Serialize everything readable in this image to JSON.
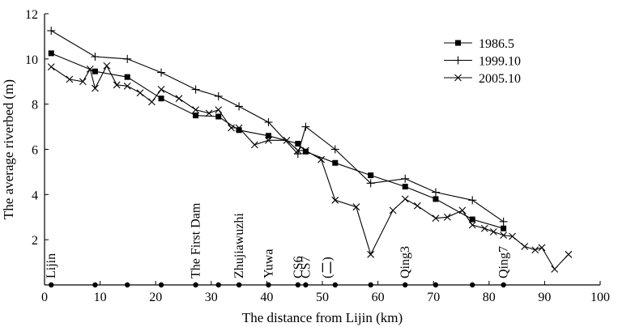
{
  "chart_data": {
    "type": "line",
    "title": "",
    "xlabel": "The distance from Lijin (km)",
    "ylabel": "The average riverbed (m)",
    "xlim": [
      0,
      100
    ],
    "ylim": [
      0,
      12
    ],
    "x_ticks": [
      0,
      10,
      20,
      30,
      40,
      50,
      60,
      70,
      80,
      90,
      100
    ],
    "y_ticks": [
      2,
      4,
      6,
      8,
      10,
      12
    ],
    "grid": false,
    "legend_position": "top-right",
    "series": [
      {
        "name": "1986.5",
        "marker": "square",
        "points": [
          [
            1.2,
            10.25
          ],
          [
            9.1,
            9.45
          ],
          [
            14.9,
            9.2
          ],
          [
            21.0,
            8.25
          ],
          [
            27.2,
            7.5
          ],
          [
            31.3,
            7.45
          ],
          [
            35.0,
            6.85
          ],
          [
            40.3,
            6.6
          ],
          [
            45.6,
            6.25
          ],
          [
            47.0,
            5.9
          ],
          [
            52.3,
            5.4
          ],
          [
            58.7,
            4.85
          ],
          [
            64.9,
            4.35
          ],
          [
            70.4,
            3.8
          ],
          [
            77.0,
            2.9
          ],
          [
            82.6,
            2.5
          ]
        ]
      },
      {
        "name": "1999.10",
        "marker": "plus",
        "points": [
          [
            1.2,
            11.25
          ],
          [
            9.1,
            10.1
          ],
          [
            14.9,
            10.0
          ],
          [
            21.0,
            9.4
          ],
          [
            27.2,
            8.65
          ],
          [
            31.3,
            8.35
          ],
          [
            35.0,
            7.9
          ],
          [
            40.3,
            7.2
          ],
          [
            45.6,
            5.8
          ],
          [
            47.0,
            7.0
          ],
          [
            52.3,
            6.0
          ],
          [
            58.7,
            4.5
          ],
          [
            64.9,
            4.7
          ],
          [
            70.4,
            4.1
          ],
          [
            77.0,
            3.75
          ],
          [
            82.6,
            2.8
          ]
        ]
      },
      {
        "name": "2005.10",
        "marker": "x",
        "points": [
          [
            1.2,
            9.65
          ],
          [
            4.5,
            9.1
          ],
          [
            6.9,
            9.0
          ],
          [
            8.2,
            9.55
          ],
          [
            9.1,
            8.7
          ],
          [
            11.2,
            9.7
          ],
          [
            13.0,
            8.85
          ],
          [
            14.9,
            8.8
          ],
          [
            17.2,
            8.5
          ],
          [
            19.3,
            8.1
          ],
          [
            21.0,
            8.65
          ],
          [
            24.2,
            8.25
          ],
          [
            27.2,
            7.75
          ],
          [
            29.6,
            7.6
          ],
          [
            31.3,
            7.75
          ],
          [
            33.6,
            6.95
          ],
          [
            35.0,
            6.95
          ],
          [
            37.8,
            6.2
          ],
          [
            40.3,
            6.4
          ],
          [
            43.6,
            6.4
          ],
          [
            45.6,
            5.95
          ],
          [
            47.0,
            5.95
          ],
          [
            49.8,
            5.55
          ],
          [
            52.3,
            3.75
          ],
          [
            56.1,
            3.45
          ],
          [
            58.7,
            1.35
          ],
          [
            62.7,
            3.3
          ],
          [
            64.9,
            3.8
          ],
          [
            67.1,
            3.5
          ],
          [
            70.4,
            2.95
          ],
          [
            72.5,
            3.0
          ],
          [
            75.2,
            3.3
          ],
          [
            77.0,
            2.65
          ],
          [
            79.2,
            2.5
          ],
          [
            80.8,
            2.35
          ],
          [
            82.6,
            2.2
          ],
          [
            84.2,
            2.15
          ],
          [
            86.4,
            1.7
          ],
          [
            88.3,
            1.55
          ],
          [
            89.5,
            1.65
          ],
          [
            91.8,
            0.7
          ],
          [
            94.3,
            1.35
          ]
        ]
      }
    ],
    "stations": [
      {
        "label": "Lijin",
        "x": 1.2
      },
      {
        "label": "The First Dam",
        "x": 27.2
      },
      {
        "label": "Zhujiawuzhi",
        "x": 35.0
      },
      {
        "label": "Yuwa",
        "x": 40.3
      },
      {
        "label": "CS6",
        "x": 45.6
      },
      {
        "label": "CS7",
        "x": 47.0
      },
      {
        "label": "(二)",
        "x": 50.9
      },
      {
        "label": "Qing3",
        "x": 64.9
      },
      {
        "label": "Qing7",
        "x": 82.6
      }
    ],
    "station_dots_x": [
      1.2,
      9.1,
      14.9,
      21.0,
      27.2,
      31.3,
      35.0,
      40.3,
      45.6,
      47.0,
      52.3,
      58.7,
      64.9,
      70.4,
      77.0,
      82.6
    ]
  }
}
